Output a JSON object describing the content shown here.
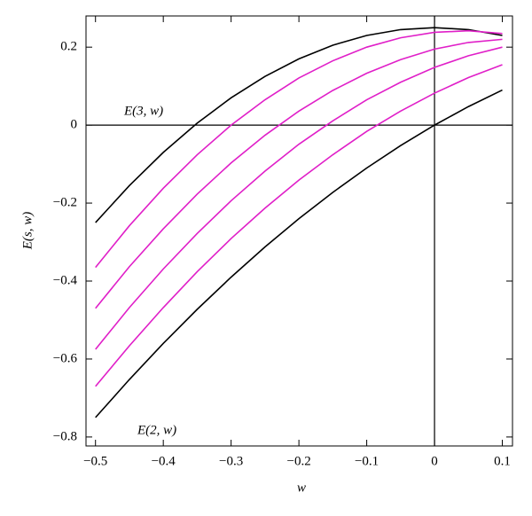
{
  "chart_data": {
    "type": "line",
    "x_label": "w",
    "y_label": "E(s, w)",
    "annotations": [
      "E(3, w)",
      "E(2, w)"
    ],
    "x": [
      -0.5,
      -0.45,
      -0.4,
      -0.35,
      -0.3,
      -0.25,
      -0.2,
      -0.15,
      -0.1,
      -0.05,
      0,
      0.05,
      0.1
    ],
    "series": [
      {
        "color": "#000000",
        "values": [
          -0.25,
          -0.155,
          -0.07,
          0.005,
          0.07,
          0.125,
          0.17,
          0.205,
          0.23,
          0.245,
          0.25,
          0.245,
          0.23
        ]
      },
      {
        "color": "#e01fc8",
        "values": [
          -0.365,
          -0.258,
          -0.162,
          -0.076,
          0.0,
          0.065,
          0.121,
          0.165,
          0.2,
          0.224,
          0.238,
          0.242,
          0.235
        ]
      },
      {
        "color": "#e01fc8",
        "values": [
          -0.47,
          -0.363,
          -0.266,
          -0.177,
          -0.097,
          -0.026,
          0.036,
          0.089,
          0.133,
          0.168,
          0.195,
          0.212,
          0.22
        ]
      },
      {
        "color": "#e01fc8",
        "values": [
          -0.575,
          -0.468,
          -0.369,
          -0.278,
          -0.194,
          -0.118,
          -0.049,
          0.011,
          0.065,
          0.11,
          0.148,
          0.178,
          0.2
        ]
      },
      {
        "color": "#e01fc8",
        "values": [
          -0.67,
          -0.566,
          -0.468,
          -0.376,
          -0.291,
          -0.213,
          -0.141,
          -0.076,
          -0.016,
          0.036,
          0.082,
          0.122,
          0.155
        ]
      },
      {
        "color": "#000000",
        "values": [
          -0.75,
          -0.6525,
          -0.56,
          -0.4725,
          -0.39,
          -0.3125,
          -0.24,
          -0.1725,
          -0.11,
          -0.0525,
          0,
          0.0475,
          0.09
        ]
      }
    ],
    "xlim": [
      -0.514,
      0.115
    ],
    "ylim": [
      -0.823,
      0.28
    ],
    "xticks": [
      {
        "value": -0.5,
        "label": "−0.5"
      },
      {
        "value": -0.4,
        "label": "−0.4"
      },
      {
        "value": -0.3,
        "label": "−0.3"
      },
      {
        "value": -0.2,
        "label": "−0.2"
      },
      {
        "value": -0.1,
        "label": "−0.1"
      },
      0,
      0.1
    ],
    "yticks": [
      0.2,
      0,
      {
        "value": -0.2,
        "label": "−0.2"
      },
      {
        "value": -0.4,
        "label": "−0.4"
      },
      {
        "value": -0.6,
        "label": "−0.6"
      },
      {
        "value": -0.8,
        "label": "−0.8"
      }
    ],
    "axes_lines": true
  }
}
